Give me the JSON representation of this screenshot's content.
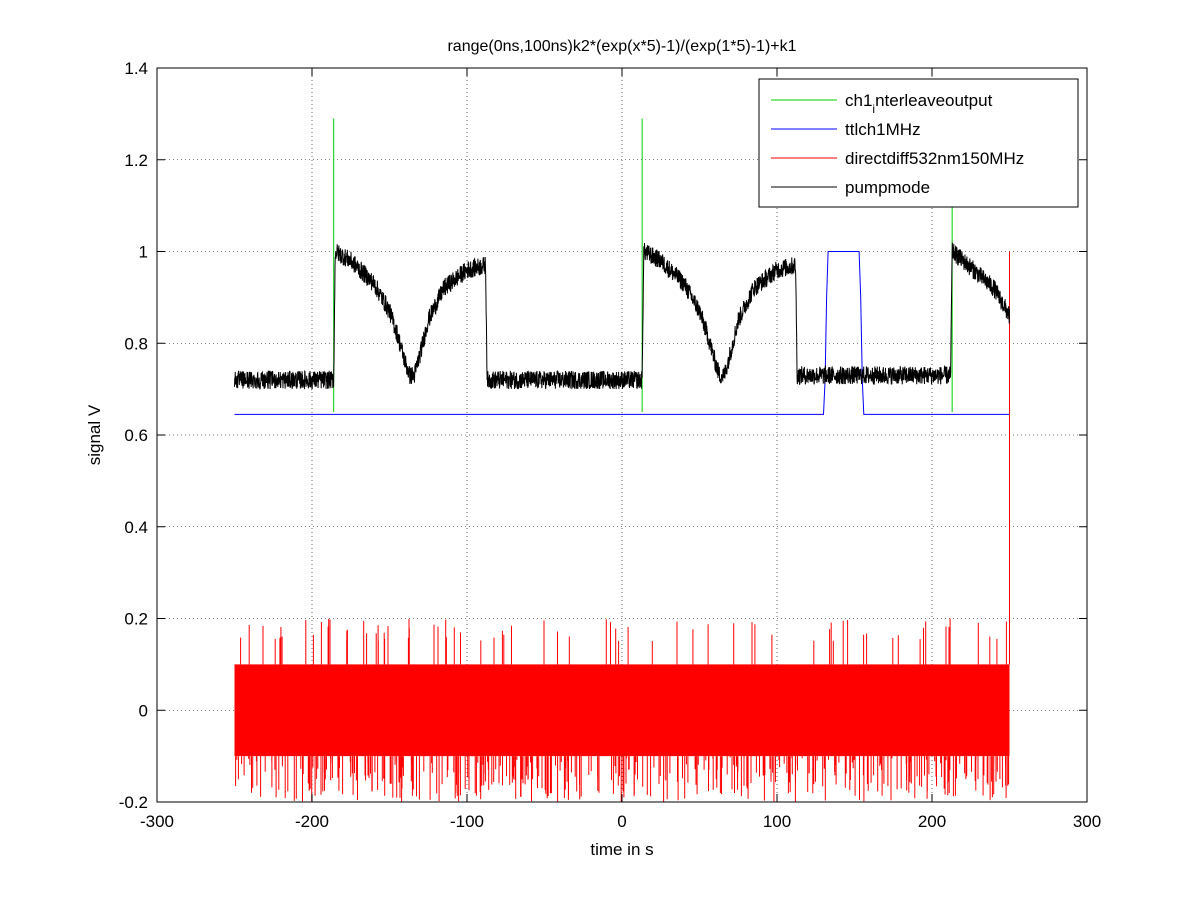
{
  "chart_data": {
    "type": "line",
    "title": "range(0ns,100ns)k2*(exp(x*5)-1)/(exp(1*5)-1)+k1",
    "xlabel": "time in s",
    "ylabel": "signal V",
    "xlim": [
      -300,
      300
    ],
    "ylim": [
      -0.2,
      1.4
    ],
    "xticks": [
      -300,
      -200,
      -100,
      0,
      100,
      200,
      300
    ],
    "yticks": [
      -0.2,
      0,
      0.2,
      0.4,
      0.6,
      0.8,
      1,
      1.2,
      1.4
    ],
    "xtick_labels": [
      "-300",
      "-200",
      "-100",
      "0",
      "100",
      "200",
      "300"
    ],
    "ytick_labels": [
      "-0.2",
      "0",
      "0.2",
      "0.4",
      "0.6",
      "0.8",
      "1",
      "1.2",
      "1.4"
    ],
    "grid": true,
    "legend_position": "top-right",
    "legend": [
      {
        "label_main": "ch1",
        "label_sub": "i",
        "label_rest": "nterleaveoutput",
        "color": "#00cc00"
      },
      {
        "label_main": "ttlch1MHz",
        "color": "#0000ff"
      },
      {
        "label_main": "directdiff532nm150MHz",
        "color": "#ff0000"
      },
      {
        "label_main": "pumpmode",
        "color": "#000000"
      }
    ],
    "series": [
      {
        "name": "ch1_interleaveoutput",
        "color": "#00cc00",
        "baseline": 0.65,
        "spikes": [
          {
            "x": -186,
            "y": 1.29
          },
          {
            "x": 13,
            "y": 1.29
          },
          {
            "x": 213,
            "y": 1.29
          }
        ]
      },
      {
        "name": "ttlch1MHz",
        "color": "#0000ff",
        "x": [
          -250,
          130,
          131,
          132,
          133,
          153,
          154,
          155,
          156,
          250
        ],
        "y": [
          0.645,
          0.645,
          0.72,
          0.9,
          1.0,
          1.0,
          0.9,
          0.72,
          0.645,
          0.645
        ]
      },
      {
        "name": "directdiff532nm150MHz",
        "color": "#ff0000",
        "x_range": [
          -250,
          250
        ],
        "band": [
          -0.1,
          0.1
        ],
        "spike_max": 0.2,
        "spike_min": -0.2,
        "end_spike": {
          "x": 250,
          "y": 1.0
        }
      },
      {
        "name": "pumpmode",
        "color": "#000000",
        "noise": 0.02,
        "x": [
          -250,
          -186,
          -185,
          -175,
          -160,
          -150,
          -145,
          -140,
          -137,
          -134,
          -130,
          -125,
          -115,
          -100,
          -88,
          -87,
          13,
          14,
          25,
          40,
          50,
          55,
          60,
          63,
          66,
          70,
          75,
          85,
          100,
          112,
          113,
          212,
          213,
          220,
          230,
          240,
          250
        ],
        "y": [
          0.72,
          0.72,
          1.0,
          0.98,
          0.93,
          0.87,
          0.82,
          0.76,
          0.73,
          0.73,
          0.78,
          0.85,
          0.92,
          0.96,
          0.97,
          0.72,
          0.72,
          1.0,
          0.98,
          0.93,
          0.87,
          0.82,
          0.76,
          0.73,
          0.73,
          0.78,
          0.85,
          0.92,
          0.96,
          0.97,
          0.73,
          0.73,
          1.0,
          0.98,
          0.95,
          0.92,
          0.86
        ]
      }
    ]
  }
}
